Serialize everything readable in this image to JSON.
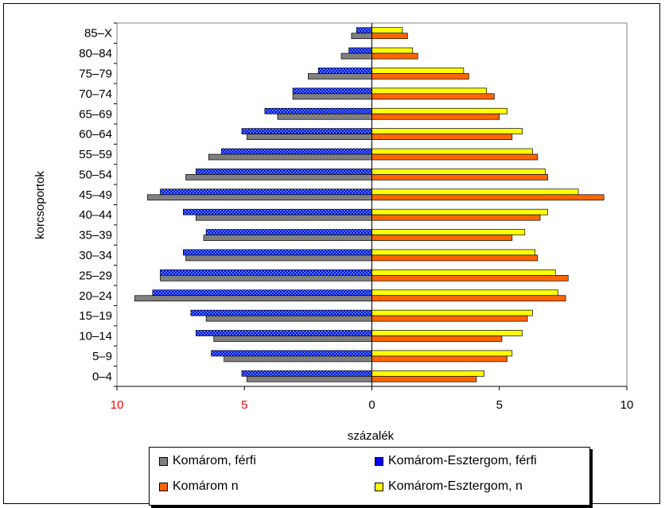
{
  "chart_data": {
    "type": "bar",
    "orientation": "horizontal",
    "ylabel": "korcsoportok",
    "xlabel": "százalék",
    "xlim": [
      -10,
      10
    ],
    "x_ticks": [
      {
        "value": -10,
        "label": "10",
        "color": "#ff0000"
      },
      {
        "value": -5,
        "label": "5",
        "color": "#ff0000"
      },
      {
        "value": 0,
        "label": "0",
        "color": "#000000"
      },
      {
        "value": 5,
        "label": "5",
        "color": "#000000"
      },
      {
        "value": 10,
        "label": "10",
        "color": "#000000"
      }
    ],
    "grid": false,
    "legend_position": "bottom",
    "categories": [
      "0–4",
      "5–9",
      "10–14",
      "15–19",
      "20–24",
      "25–29",
      "30–34",
      "35–39",
      "40–44",
      "45–49",
      "50–54",
      "55–59",
      "60–64",
      "65–69",
      "70–74",
      "75–79",
      "80–84",
      "85–X"
    ],
    "series": [
      {
        "name": "Komárom-Esztergom, férfi",
        "color": "#0000ff",
        "side": "left",
        "values": [
          5.1,
          6.3,
          6.9,
          7.1,
          8.6,
          8.3,
          7.4,
          6.5,
          7.4,
          8.3,
          6.9,
          5.9,
          5.1,
          4.2,
          3.1,
          2.1,
          0.9,
          0.6
        ]
      },
      {
        "name": "Komárom, férfi",
        "color": "#808080",
        "side": "left",
        "values": [
          4.9,
          5.8,
          6.2,
          6.5,
          9.3,
          8.3,
          7.3,
          6.6,
          6.9,
          8.8,
          7.3,
          6.4,
          4.9,
          3.7,
          3.1,
          2.5,
          1.2,
          0.8
        ]
      },
      {
        "name": "Komárom-Esztergom, n",
        "color": "#ffff00",
        "side": "right",
        "values": [
          4.4,
          5.5,
          5.9,
          6.3,
          7.3,
          7.2,
          6.4,
          6.0,
          6.9,
          8.1,
          6.8,
          6.3,
          5.9,
          5.3,
          4.5,
          3.6,
          1.6,
          1.2
        ]
      },
      {
        "name": "Komárom n",
        "color": "#ff6600",
        "side": "right",
        "values": [
          4.1,
          5.3,
          5.1,
          6.1,
          7.6,
          7.7,
          6.5,
          5.5,
          6.6,
          9.1,
          6.9,
          6.5,
          5.5,
          5.0,
          4.8,
          3.8,
          1.8,
          1.4
        ]
      }
    ],
    "legend": [
      {
        "label": "Komárom, férfi",
        "color": "#808080"
      },
      {
        "label": "Komárom-Esztergom, férfi",
        "color": "#0000ff"
      },
      {
        "label": "Komárom n",
        "color": "#ff6600"
      },
      {
        "label": "Komárom-Esztergom, n",
        "color": "#ffff00"
      }
    ]
  }
}
